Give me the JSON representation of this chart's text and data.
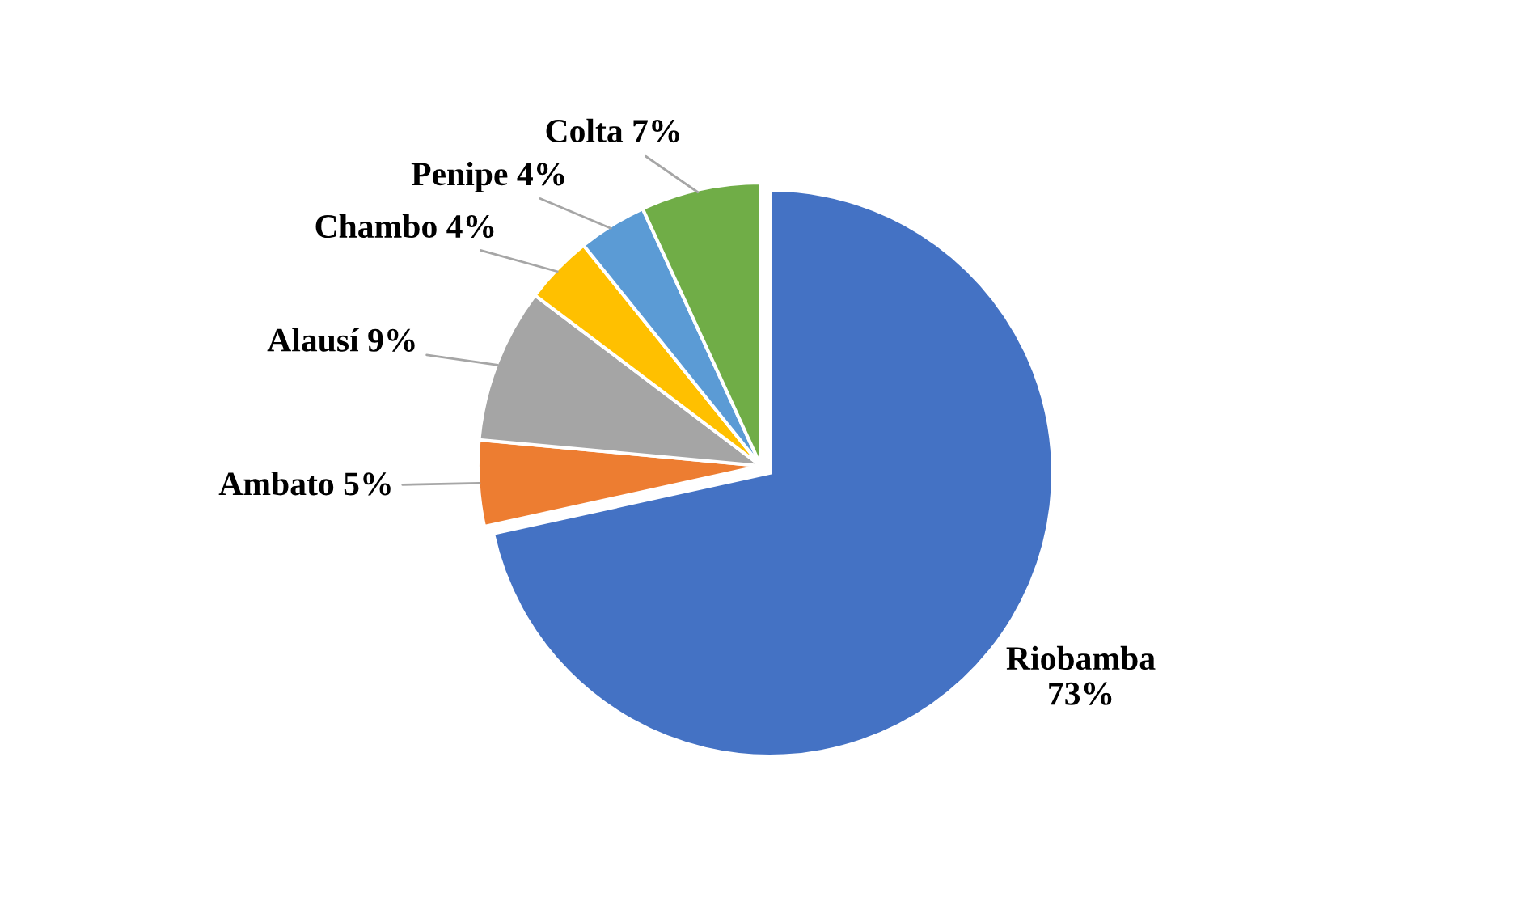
{
  "chart_data": {
    "type": "pie",
    "categories": [
      "Riobamba",
      "Ambato",
      "Alausí",
      "Chambo",
      "Penipe",
      "Colta"
    ],
    "values": [
      73,
      5,
      9,
      4,
      4,
      7
    ],
    "value_labels": [
      "73%",
      "5%",
      "9%",
      "4%",
      "4%",
      "7%"
    ],
    "colors": [
      "#4472c4",
      "#ed7d31",
      "#a5a5a5",
      "#ffc000",
      "#5b9bd5",
      "#70ad47"
    ],
    "legend": false
  }
}
